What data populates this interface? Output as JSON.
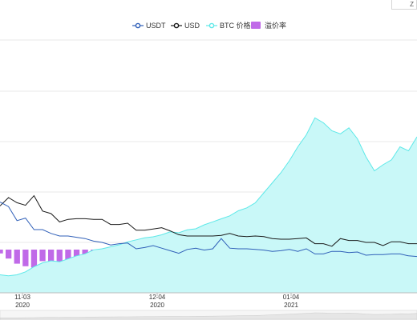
{
  "corner_button": {
    "label": "Z"
  },
  "colors": {
    "usdt": "#2f5fb8",
    "usd": "#1a1a1a",
    "btc_fill": "#c9f8f8",
    "btc_line": "#5de8e8",
    "premium": "#c06ae8",
    "grid": "#e8e8e8",
    "axis": "#bbbbbb"
  },
  "chart_data": {
    "type": "line",
    "legend": [
      {
        "name": "USDT",
        "marker": "line-dot",
        "color": "#2f5fb8"
      },
      {
        "name": "USD",
        "marker": "line-dot",
        "color": "#1a1a1a"
      },
      {
        "name": "BTC 价格",
        "marker": "line-dot",
        "color": "#5de8e8"
      },
      {
        "name": "溢价率",
        "marker": "rect",
        "color": "#c06ae8"
      }
    ],
    "legend_position": "top-center",
    "x_ticks": [
      {
        "day": "11-03",
        "year": "2020"
      },
      {
        "day": "12-04",
        "year": "2020"
      },
      {
        "day": "01-04",
        "year": "2021"
      }
    ],
    "grid": true,
    "series": [
      {
        "name": "USD",
        "values": [
          0.57,
          0.7,
          0.62,
          0.58,
          0.73,
          0.49,
          0.45,
          0.32,
          0.36,
          0.37,
          0.37,
          0.36,
          0.36,
          0.28,
          0.28,
          0.3,
          0.19,
          0.19,
          0.21,
          0.23,
          0.18,
          0.12,
          0.1,
          0.1,
          0.1,
          0.1,
          0.11,
          0.14,
          0.1,
          0.09,
          0.1,
          0.09,
          0.06,
          0.05,
          0.05,
          0.06,
          0.07,
          -0.02,
          -0.02,
          -0.06,
          0.06,
          0.03,
          0.03,
          0.0,
          0.0,
          -0.05,
          0.01,
          0.01,
          -0.02,
          -0.02
        ]
      },
      {
        "name": "USDT",
        "values": [
          0.63,
          0.56,
          0.34,
          0.38,
          0.2,
          0.2,
          0.14,
          0.1,
          0.1,
          0.08,
          0.06,
          0.02,
          0.0,
          -0.04,
          -0.02,
          -0.01,
          -0.1,
          -0.08,
          -0.05,
          -0.09,
          -0.13,
          -0.17,
          -0.11,
          -0.09,
          -0.12,
          -0.1,
          0.06,
          -0.09,
          -0.1,
          -0.1,
          -0.11,
          -0.12,
          -0.14,
          -0.13,
          -0.11,
          -0.14,
          -0.1,
          -0.18,
          -0.18,
          -0.14,
          -0.14,
          -0.16,
          -0.15,
          -0.2,
          -0.19,
          -0.19,
          -0.18,
          -0.18,
          -0.21,
          -0.22
        ]
      },
      {
        "name": "BTC 价格",
        "values": [
          13.8,
          13.7,
          13.8,
          14.1,
          14.6,
          15.0,
          15.2,
          15.1,
          15.4,
          15.7,
          15.9,
          16.3,
          16.4,
          16.6,
          16.8,
          17.1,
          17.3,
          17.5,
          17.6,
          17.8,
          18.1,
          18.0,
          18.3,
          18.4,
          18.8,
          19.1,
          19.4,
          19.7,
          20.2,
          20.5,
          21.0,
          22.0,
          23.0,
          24.0,
          25.2,
          26.6,
          27.8,
          29.5,
          29.0,
          28.2,
          27.9,
          28.5,
          27.4,
          25.6,
          24.2,
          24.8,
          25.3,
          26.6,
          26.2,
          27.6
        ]
      },
      {
        "name": "溢价率",
        "values": [
          -0.03,
          -0.07,
          -0.11,
          -0.13,
          -0.14,
          -0.09,
          -0.11,
          -0.12,
          -0.09,
          -0.14,
          -0.11,
          -0.09,
          -0.08,
          -0.13,
          -0.12,
          -0.1,
          -0.12,
          -0.12,
          -0.13,
          -0.12,
          -0.11,
          -0.08,
          -0.12,
          -0.12,
          -0.09,
          -0.11,
          -0.12,
          -0.07,
          -0.08,
          -0.07,
          -0.07,
          -0.08,
          -0.07,
          -0.07,
          -0.09,
          -0.07,
          -0.08,
          -0.09,
          -0.06,
          -0.08,
          -0.08,
          -0.07,
          -0.07,
          -0.07,
          -0.08,
          -0.08,
          -0.07,
          -0.08,
          -0.07,
          -0.08
        ]
      }
    ]
  }
}
